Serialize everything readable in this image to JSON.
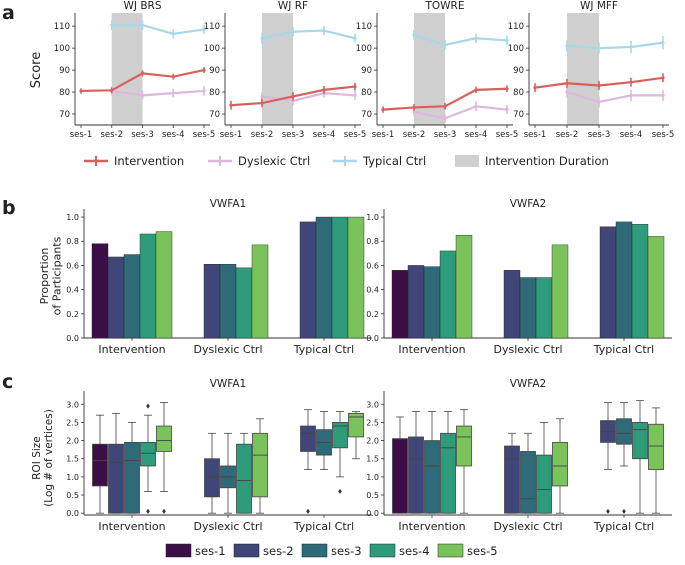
{
  "panel_letters": [
    "a",
    "b",
    "c"
  ],
  "colors": {
    "intervention": "#d9605d",
    "dyslexic": "#dcb9dc",
    "typical": "#a8d8e8",
    "duration": "#cfcfcf",
    "ses": [
      "#3b0f45",
      "#414679",
      "#2f6a78",
      "#2e9b7a",
      "#79c35a"
    ]
  },
  "chart_data": [
    {
      "id": "a",
      "type": "line",
      "ylabel": "Score",
      "ylim": [
        65,
        116
      ],
      "yticks": [
        70,
        80,
        90,
        100,
        110
      ],
      "x": [
        "ses-1",
        "ses-2",
        "ses-3",
        "ses-4",
        "ses-5"
      ],
      "shaded_sessions": [
        "ses-2",
        "ses-3"
      ],
      "legend": [
        "Intervention",
        "Dyslexic Ctrl",
        "Typical Ctrl",
        "Intervention Duration"
      ],
      "subplots": [
        {
          "title": "WJ BRS",
          "series": [
            {
              "name": "Intervention",
              "x": [
                "ses-1",
                "ses-2",
                "ses-3",
                "ses-4",
                "ses-5"
              ],
              "values": [
                80.5,
                80.8,
                88.5,
                87,
                90
              ],
              "err": [
                1.2,
                1.3,
                1.4,
                1.3,
                1.3
              ]
            },
            {
              "name": "Dyslexic Ctrl",
              "x": [
                "ses-2",
                "ses-3",
                "ses-4",
                "ses-5"
              ],
              "values": [
                80.5,
                78.5,
                79.5,
                80.5
              ],
              "err": [
                2.0,
                2.0,
                2.0,
                2.2
              ]
            },
            {
              "name": "Typical Ctrl",
              "x": [
                "ses-2",
                "ses-3",
                "ses-4",
                "ses-5"
              ],
              "values": [
                110.5,
                110.5,
                106.5,
                108.5
              ],
              "err": [
                2.2,
                2.2,
                2.0,
                2.0
              ]
            }
          ]
        },
        {
          "title": "WJ RF",
          "series": [
            {
              "name": "Intervention",
              "x": [
                "ses-1",
                "ses-2",
                "ses-3",
                "ses-4",
                "ses-5"
              ],
              "values": [
                74,
                75,
                78,
                81,
                82.5
              ],
              "err": [
                2.0,
                2.0,
                2.0,
                1.8,
                1.8
              ]
            },
            {
              "name": "Dyslexic Ctrl",
              "x": [
                "ses-2",
                "ses-3",
                "ses-4",
                "ses-5"
              ],
              "values": [
                78,
                76,
                79.5,
                78.5
              ],
              "err": [
                2.0,
                2.0,
                2.0,
                2.0
              ]
            },
            {
              "name": "Typical Ctrl",
              "x": [
                "ses-2",
                "ses-3",
                "ses-4",
                "ses-5"
              ],
              "values": [
                104.5,
                107.5,
                108,
                104.5
              ],
              "err": [
                2.5,
                2.2,
                2.2,
                2.0
              ]
            }
          ]
        },
        {
          "title": "TOWRE",
          "series": [
            {
              "name": "Intervention",
              "x": [
                "ses-1",
                "ses-2",
                "ses-3",
                "ses-4",
                "ses-5"
              ],
              "values": [
                72,
                73,
                73.5,
                81,
                81.5
              ],
              "err": [
                1.5,
                1.5,
                1.5,
                1.5,
                1.5
              ]
            },
            {
              "name": "Dyslexic Ctrl",
              "x": [
                "ses-2",
                "ses-3",
                "ses-4",
                "ses-5"
              ],
              "values": [
                71,
                68,
                73.5,
                72
              ],
              "err": [
                2.0,
                2.0,
                2.2,
                2.0
              ]
            },
            {
              "name": "Typical Ctrl",
              "x": [
                "ses-2",
                "ses-3",
                "ses-4",
                "ses-5"
              ],
              "values": [
                106,
                101.5,
                104.5,
                103.5
              ],
              "err": [
                2.2,
                2.2,
                2.2,
                2.2
              ]
            }
          ]
        },
        {
          "title": "WJ MFF",
          "series": [
            {
              "name": "Intervention",
              "x": [
                "ses-1",
                "ses-2",
                "ses-3",
                "ses-4",
                "ses-5"
              ],
              "values": [
                82,
                84,
                83,
                84.5,
                86.5
              ],
              "err": [
                2.0,
                2.0,
                2.0,
                2.0,
                2.0
              ]
            },
            {
              "name": "Dyslexic Ctrl",
              "x": [
                "ses-2",
                "ses-3",
                "ses-4",
                "ses-5"
              ],
              "values": [
                80,
                75.5,
                78.5,
                78.5
              ],
              "err": [
                2.5,
                2.5,
                2.5,
                2.5
              ]
            },
            {
              "name": "Typical Ctrl",
              "x": [
                "ses-2",
                "ses-3",
                "ses-4",
                "ses-5"
              ],
              "values": [
                101,
                100,
                100.5,
                102.5
              ],
              "err": [
                2.5,
                2.5,
                2.8,
                3.0
              ]
            }
          ]
        }
      ]
    },
    {
      "id": "b",
      "type": "bar",
      "ylabel": "Proportion of Participants",
      "ylabel_lines": [
        "Proportion",
        "of Participants"
      ],
      "ylim": [
        0,
        1.05
      ],
      "yticks": [
        "0.0",
        "0.2",
        "0.4",
        "0.6",
        "0.8",
        "1.0"
      ],
      "categories": [
        "Intervention",
        "Dyslexic Ctrl",
        "Typical Ctrl"
      ],
      "sessions": [
        "ses-1",
        "ses-2",
        "ses-3",
        "ses-4",
        "ses-5"
      ],
      "subplots": [
        {
          "title": "VWFA1",
          "values": [
            [
              0.78,
              0.67,
              0.69,
              0.86,
              0.88
            ],
            [
              null,
              0.61,
              0.61,
              0.58,
              0.77
            ],
            [
              null,
              0.96,
              1.0,
              1.0,
              1.0
            ]
          ]
        },
        {
          "title": "VWFA2",
          "values": [
            [
              0.56,
              0.6,
              0.59,
              0.72,
              0.85
            ],
            [
              null,
              0.56,
              0.5,
              0.5,
              0.77
            ],
            [
              null,
              0.92,
              0.96,
              0.94,
              0.84
            ]
          ]
        }
      ]
    },
    {
      "id": "c",
      "type": "box",
      "ylabel": "ROI Size (Log # of vertices)",
      "ylabel_lines": [
        "ROI Size",
        "(Log # of vertices)"
      ],
      "ylim": [
        -0.05,
        3.2
      ],
      "yticks": [
        "0.0",
        "0.5",
        "1.0",
        "1.5",
        "2.0",
        "2.5",
        "3.0"
      ],
      "categories": [
        "Intervention",
        "Dyslexic Ctrl",
        "Typical Ctrl"
      ],
      "sessions": [
        "ses-1",
        "ses-2",
        "ses-3",
        "ses-4",
        "ses-5"
      ],
      "legend": [
        "ses-1",
        "ses-2",
        "ses-3",
        "ses-4",
        "ses-5"
      ],
      "subplots": [
        {
          "title": "VWFA1",
          "boxes": [
            [
              {
                "min": 0,
                "q1": 0.75,
                "med": 1.45,
                "q3": 1.9,
                "max": 2.7,
                "fliers": []
              },
              {
                "min": 0,
                "q1": 0.0,
                "med": 1.4,
                "q3": 1.9,
                "max": 2.75,
                "fliers": []
              },
              {
                "min": 0,
                "q1": 0.0,
                "med": 1.45,
                "q3": 1.95,
                "max": 2.5,
                "fliers": []
              },
              {
                "min": 0.6,
                "q1": 1.3,
                "med": 1.65,
                "q3": 1.95,
                "max": 2.7,
                "fliers": [
                  0.05,
                  2.95
                ]
              },
              {
                "min": 0.6,
                "q1": 1.7,
                "med": 2.0,
                "q3": 2.4,
                "max": 3.05,
                "fliers": [
                  0.05
                ]
              }
            ],
            [
              null,
              {
                "min": 0,
                "q1": 0.45,
                "med": 1.0,
                "q3": 1.5,
                "max": 2.2,
                "fliers": []
              },
              {
                "min": 0,
                "q1": 0.7,
                "med": 1.0,
                "q3": 1.3,
                "max": 2.2,
                "fliers": []
              },
              {
                "min": 0,
                "q1": 0.0,
                "med": 0.9,
                "q3": 1.9,
                "max": 2.2,
                "fliers": []
              },
              {
                "min": 0,
                "q1": 0.45,
                "med": 1.6,
                "q3": 2.2,
                "max": 2.6,
                "fliers": []
              }
            ],
            [
              null,
              {
                "min": 1.2,
                "q1": 1.7,
                "med": 2.2,
                "q3": 2.4,
                "max": 2.85,
                "fliers": [
                  0.05
                ]
              },
              {
                "min": 1.2,
                "q1": 1.6,
                "med": 1.95,
                "q3": 2.3,
                "max": 2.8,
                "fliers": []
              },
              {
                "min": 1.0,
                "q1": 1.8,
                "med": 2.4,
                "q3": 2.5,
                "max": 2.8,
                "fliers": [
                  0.6
                ]
              },
              {
                "min": 1.5,
                "q1": 2.1,
                "med": 2.65,
                "q3": 2.75,
                "max": 2.8,
                "fliers": []
              }
            ]
          ]
        },
        {
          "title": "VWFA2",
          "boxes": [
            [
              {
                "min": 0,
                "q1": 0.0,
                "med": 2.05,
                "q3": 2.05,
                "max": 2.65,
                "fliers": []
              },
              {
                "min": 0,
                "q1": 0.0,
                "med": 1.5,
                "q3": 2.1,
                "max": 2.8,
                "fliers": []
              },
              {
                "min": 0,
                "q1": 0.0,
                "med": 1.3,
                "q3": 2.0,
                "max": 2.8,
                "fliers": []
              },
              {
                "min": 0,
                "q1": 0.0,
                "med": 1.8,
                "q3": 2.2,
                "max": 2.8,
                "fliers": []
              },
              {
                "min": 0,
                "q1": 1.3,
                "med": 2.1,
                "q3": 2.4,
                "max": 2.85,
                "fliers": []
              }
            ],
            [
              null,
              {
                "min": 0,
                "q1": 0.0,
                "med": 1.5,
                "q3": 1.85,
                "max": 2.2,
                "fliers": []
              },
              {
                "min": 0,
                "q1": 0.0,
                "med": 0.4,
                "q3": 1.7,
                "max": 2.2,
                "fliers": []
              },
              {
                "min": 0,
                "q1": 0.0,
                "med": 0.65,
                "q3": 1.6,
                "max": 2.5,
                "fliers": []
              },
              {
                "min": 0,
                "q1": 0.75,
                "med": 1.3,
                "q3": 1.95,
                "max": 2.6,
                "fliers": []
              }
            ],
            [
              null,
              {
                "min": 1.2,
                "q1": 1.95,
                "med": 2.25,
                "q3": 2.55,
                "max": 3.05,
                "fliers": [
                  0.05
                ]
              },
              {
                "min": 1.3,
                "q1": 1.9,
                "med": 2.2,
                "q3": 2.6,
                "max": 3.05,
                "fliers": [
                  0.05
                ]
              },
              {
                "min": 0.0,
                "q1": 1.5,
                "med": 2.3,
                "q3": 2.5,
                "max": 3.1,
                "fliers": []
              },
              {
                "min": 0.0,
                "q1": 1.2,
                "med": 1.85,
                "q3": 2.45,
                "max": 2.9,
                "fliers": []
              }
            ]
          ]
        }
      ]
    }
  ]
}
